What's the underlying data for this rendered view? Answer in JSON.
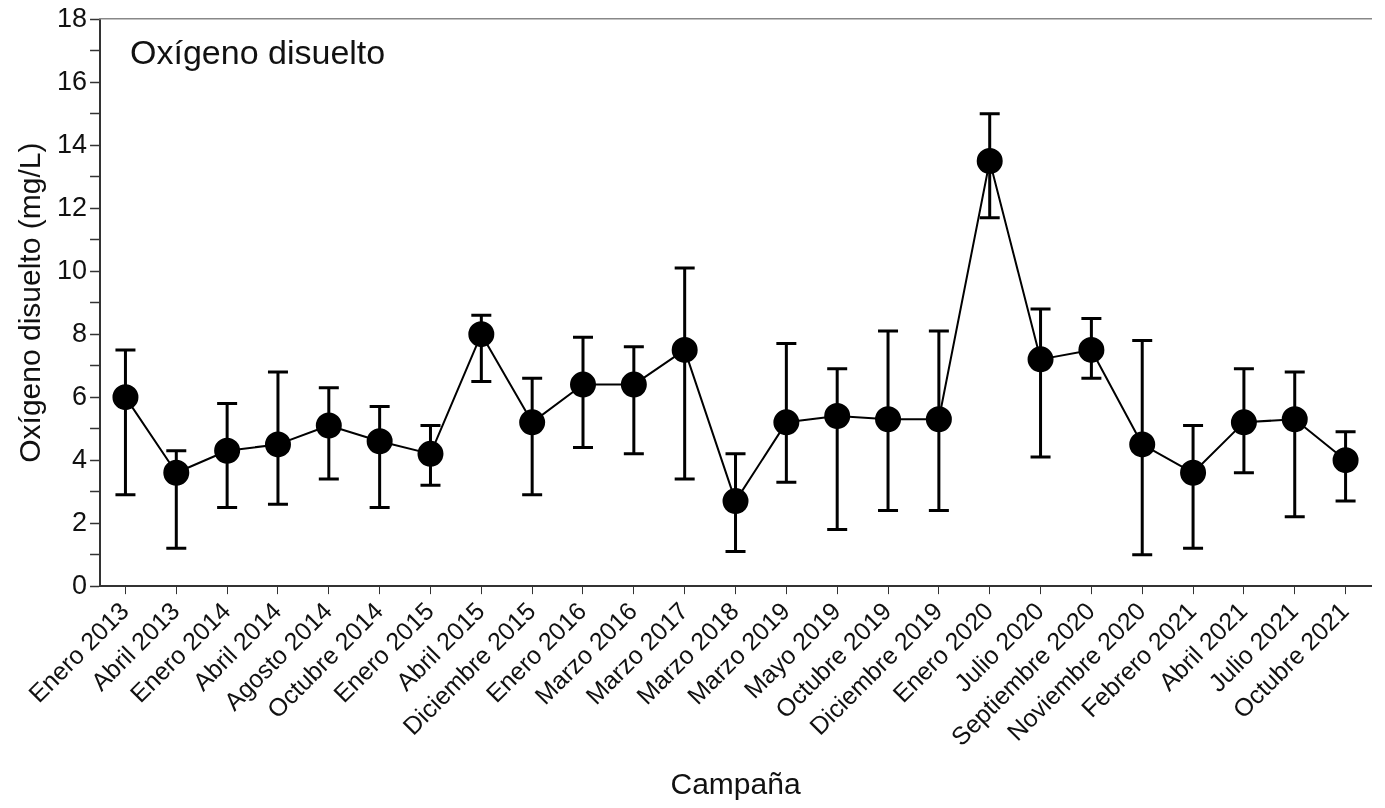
{
  "chart_data": {
    "type": "line",
    "title": "Oxígeno disuelto",
    "xlabel": "Campaña",
    "ylabel": "Oxígeno disuelto (mg/L)",
    "categories": [
      "Enero 2013",
      "Abril 2013",
      "Enero 2014",
      "Abril 2014",
      "Agosto 2014",
      "Octubre 2014",
      "Enero 2015",
      "Abril 2015",
      "Diciembre 2015",
      "Enero 2016",
      "Marzo 2016",
      "Marzo 2017",
      "Marzo 2018",
      "Marzo 2019",
      "Mayo 2019",
      "Octubre 2019",
      "Diciembre 2019",
      "Enero 2020",
      "Julio 2020",
      "Septiembre 2020",
      "Noviembre 2020",
      "Febrero 2021",
      "Abril 2021",
      "Julio 2021",
      "Octubre 2021"
    ],
    "values": [
      6.0,
      3.6,
      4.3,
      4.5,
      5.1,
      4.6,
      4.2,
      8.0,
      5.2,
      6.4,
      6.4,
      7.5,
      2.7,
      5.2,
      5.4,
      5.3,
      5.3,
      13.5,
      7.2,
      7.5,
      4.5,
      3.6,
      5.2,
      5.3,
      4.0
    ],
    "errors": [
      [
        2.9,
        7.5
      ],
      [
        1.2,
        4.3
      ],
      [
        2.5,
        5.8
      ],
      [
        2.6,
        6.8
      ],
      [
        3.4,
        6.3
      ],
      [
        2.5,
        5.7
      ],
      [
        3.2,
        5.1
      ],
      [
        6.5,
        8.6
      ],
      [
        2.9,
        6.6
      ],
      [
        4.4,
        7.9
      ],
      [
        4.2,
        7.6
      ],
      [
        3.4,
        10.1
      ],
      [
        1.1,
        4.2
      ],
      [
        3.3,
        7.7
      ],
      [
        1.8,
        6.9
      ],
      [
        2.4,
        8.1
      ],
      [
        2.4,
        8.1
      ],
      [
        11.7,
        15.0
      ],
      [
        4.1,
        8.8
      ],
      [
        6.6,
        8.5
      ],
      [
        1.0,
        7.8
      ],
      [
        1.2,
        5.1
      ],
      [
        3.6,
        6.9
      ],
      [
        2.2,
        6.8
      ],
      [
        2.7,
        4.9
      ]
    ],
    "color": "#000000",
    "marker": "circle",
    "line_style": "solid",
    "grid": false,
    "legend": false,
    "ylim": [
      0,
      18
    ],
    "yticks": [
      0,
      {
        "value": 1,
        "label": null
      },
      2,
      {
        "value": 3,
        "label": null
      },
      4,
      {
        "value": 5,
        "label": null
      },
      6,
      {
        "value": 7,
        "label": null
      },
      8,
      {
        "value": 9,
        "label": null
      },
      10,
      {
        "value": 11,
        "label": null
      },
      12,
      {
        "value": 13,
        "label": null
      },
      14,
      {
        "value": 15,
        "label": null
      },
      16,
      {
        "value": 17,
        "label": null
      },
      18
    ]
  }
}
